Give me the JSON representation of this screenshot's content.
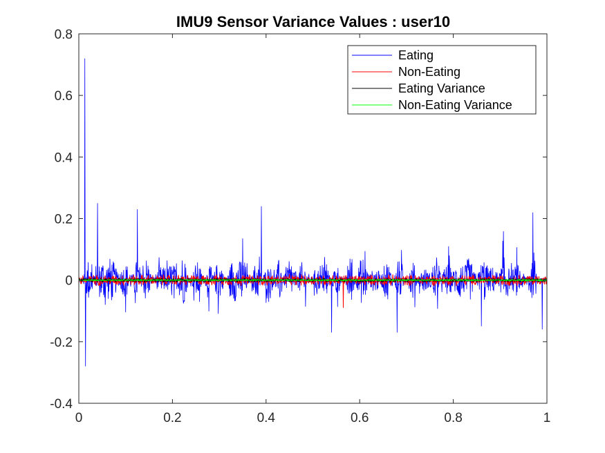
{
  "chart_data": {
    "type": "line",
    "title": "IMU9 Sensor Variance Values : user10",
    "xlabel": "",
    "ylabel": "",
    "xlim": [
      0,
      1
    ],
    "ylim": [
      -0.4,
      0.8
    ],
    "x_ticks": [
      "0",
      "0.2",
      "0.4",
      "0.6",
      "0.8",
      "1"
    ],
    "y_ticks": [
      "-0.4",
      "-0.2",
      "0",
      "0.2",
      "0.4",
      "0.6",
      "0.8"
    ],
    "grid": false,
    "legend_position": "top-right",
    "series": [
      {
        "name": "Eating",
        "color": "#0000ff",
        "note_peaks": [
          {
            "x": 0.013,
            "y": 0.72
          },
          {
            "x": 0.014,
            "y": -0.28
          },
          {
            "x": 0.04,
            "y": 0.25
          },
          {
            "x": 0.125,
            "y": 0.23
          },
          {
            "x": 0.39,
            "y": 0.24
          },
          {
            "x": 0.54,
            "y": -0.17
          },
          {
            "x": 0.68,
            "y": -0.17
          },
          {
            "x": 0.86,
            "y": -0.15
          },
          {
            "x": 0.97,
            "y": 0.22
          },
          {
            "x": 0.99,
            "y": -0.16
          }
        ],
        "typical_amplitude": 0.08
      },
      {
        "name": "Non-Eating",
        "color": "#ff0000",
        "typical_amplitude": 0.02,
        "min": -0.09,
        "max": 0.03
      },
      {
        "name": "Eating Variance",
        "color": "#000000",
        "typical_amplitude": 0.005
      },
      {
        "name": "Non-Eating Variance",
        "color": "#00ff00",
        "typical_amplitude": 0.002
      }
    ]
  }
}
